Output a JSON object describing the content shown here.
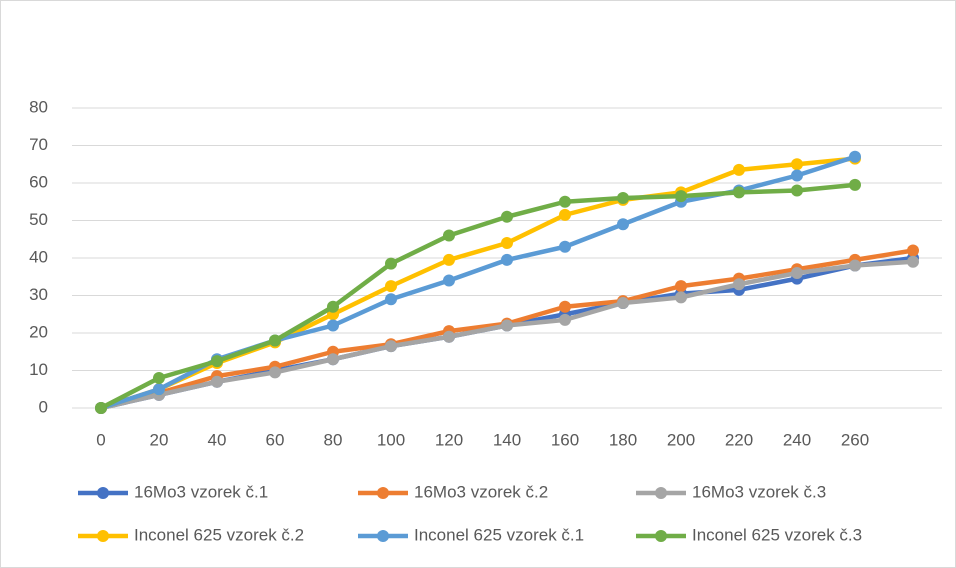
{
  "chart_data": {
    "type": "line",
    "categories": [
      "0",
      "20",
      "40",
      "60",
      "80",
      "100",
      "120",
      "140",
      "160",
      "180",
      "200",
      "220",
      "240",
      "260",
      null
    ],
    "series": [
      {
        "name": "16Mo3 vzorek č.1",
        "color": "#4472c4",
        "values": [
          0,
          3.5,
          7,
          10,
          13,
          16.5,
          19,
          22,
          25,
          28,
          30.5,
          31.5,
          34.5,
          38,
          40
        ]
      },
      {
        "name": "16Mo3 vzorek č.2",
        "color": "#ed7d31",
        "values": [
          0,
          4,
          8.5,
          11,
          15,
          17,
          20.5,
          22.5,
          27,
          28.5,
          32.5,
          34.5,
          37,
          39.5,
          42
        ]
      },
      {
        "name": "16Mo3 vzorek č.3",
        "color": "#a5a5a5",
        "values": [
          0,
          3.5,
          7,
          9.5,
          13,
          16.5,
          19,
          22,
          23.5,
          28,
          29.5,
          33,
          36,
          38,
          39
        ]
      },
      {
        "name": "Inconel 625 vzorek č.2",
        "color": "#ffc000",
        "values": [
          0,
          5,
          12,
          17.5,
          25,
          32.5,
          39.5,
          44,
          51.5,
          55.5,
          57.5,
          63.5,
          65,
          66.5,
          null
        ]
      },
      {
        "name": "Inconel 625 vzorek č.1",
        "color": "#5b9bd5",
        "values": [
          0,
          5,
          13,
          18,
          22,
          29,
          34,
          39.5,
          43,
          49,
          55,
          58,
          62,
          67,
          null
        ]
      },
      {
        "name": "Inconel 625 vzorek č.3",
        "color": "#70ad47",
        "values": [
          0,
          8,
          12.5,
          18,
          27,
          38.5,
          46,
          51,
          55,
          56,
          56.5,
          57.5,
          58,
          59.5,
          null
        ]
      }
    ],
    "ylim": [
      0,
      80
    ],
    "yticks": [
      0,
      10,
      20,
      30,
      40,
      50,
      60,
      70,
      80
    ],
    "grid": true,
    "legend": "bottom"
  }
}
